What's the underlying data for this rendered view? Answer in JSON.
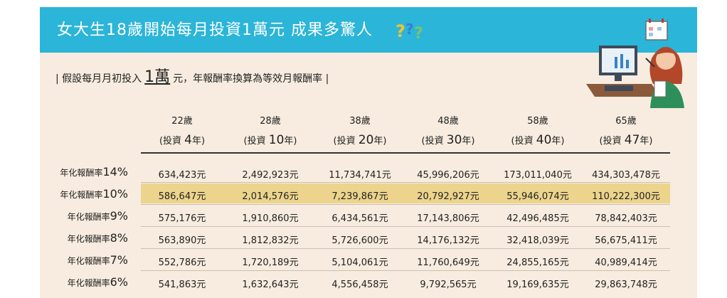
{
  "banner": {
    "title": "女大生18歲開始每月投資1萬元  成果多驚人"
  },
  "subtitle": {
    "prefix": "| 假設每月月初投入",
    "amount": "1萬",
    "suffix": "元，年報酬率換算為等效月報酬率 |"
  },
  "columns": [
    {
      "age": "22歲",
      "pre": "(投資",
      "years": "4",
      "post": "年)"
    },
    {
      "age": "28歲",
      "pre": "(投資",
      "years": "10",
      "post": "年)"
    },
    {
      "age": "38歲",
      "pre": "(投資",
      "years": "20",
      "post": "年)"
    },
    {
      "age": "48歲",
      "pre": "(投資",
      "years": "30",
      "post": "年)"
    },
    {
      "age": "58歲",
      "pre": "(投資",
      "years": "40",
      "post": "年)"
    },
    {
      "age": "65歲",
      "pre": "(投資",
      "years": "47",
      "post": "年)"
    }
  ],
  "rows": [
    {
      "label": "年化報酬率",
      "rate": "14%",
      "values": [
        "634,423元",
        "2,492,923元",
        "11,734,741元",
        "45,996,206元",
        "173,011,040元",
        "434,303,478元"
      ]
    },
    {
      "label": "年化報酬率",
      "rate": "10%",
      "highlighted": true,
      "values": [
        "586,647元",
        "2,014,576元",
        "7,239,867元",
        "20,792,927元",
        "55,946,074元",
        "110,222,300元"
      ]
    },
    {
      "label": "年化報酬率",
      "rate": "9%",
      "values": [
        "575,176元",
        "1,910,860元",
        "6,434,561元",
        "17,143,806元",
        "42,496,485元",
        "78,842,403元"
      ]
    },
    {
      "label": "年化報酬率",
      "rate": "8%",
      "values": [
        "563,890元",
        "1,812,832元",
        "5,726,600元",
        "14,176,132元",
        "32,418,039元",
        "56,675,411元"
      ]
    },
    {
      "label": "年化報酬率",
      "rate": "7%",
      "values": [
        "552,786元",
        "1,720,189元",
        "5,104,061元",
        "11,760,649元",
        "24,855,165元",
        "40,989,414元"
      ]
    },
    {
      "label": "年化報酬率",
      "rate": "6%",
      "values": [
        "541,863元",
        "1,632,643元",
        "4,556,458元",
        "9,792,565元",
        "19,169,635元",
        "29,863,748元"
      ]
    }
  ],
  "colors": {
    "banner": "#2bb5d8",
    "card": "#f7ecdf",
    "highlight": "#ecd48c"
  },
  "icons": {
    "banner_decoration": "question-marks-icon",
    "illustration": "woman-at-computer-illustration"
  }
}
